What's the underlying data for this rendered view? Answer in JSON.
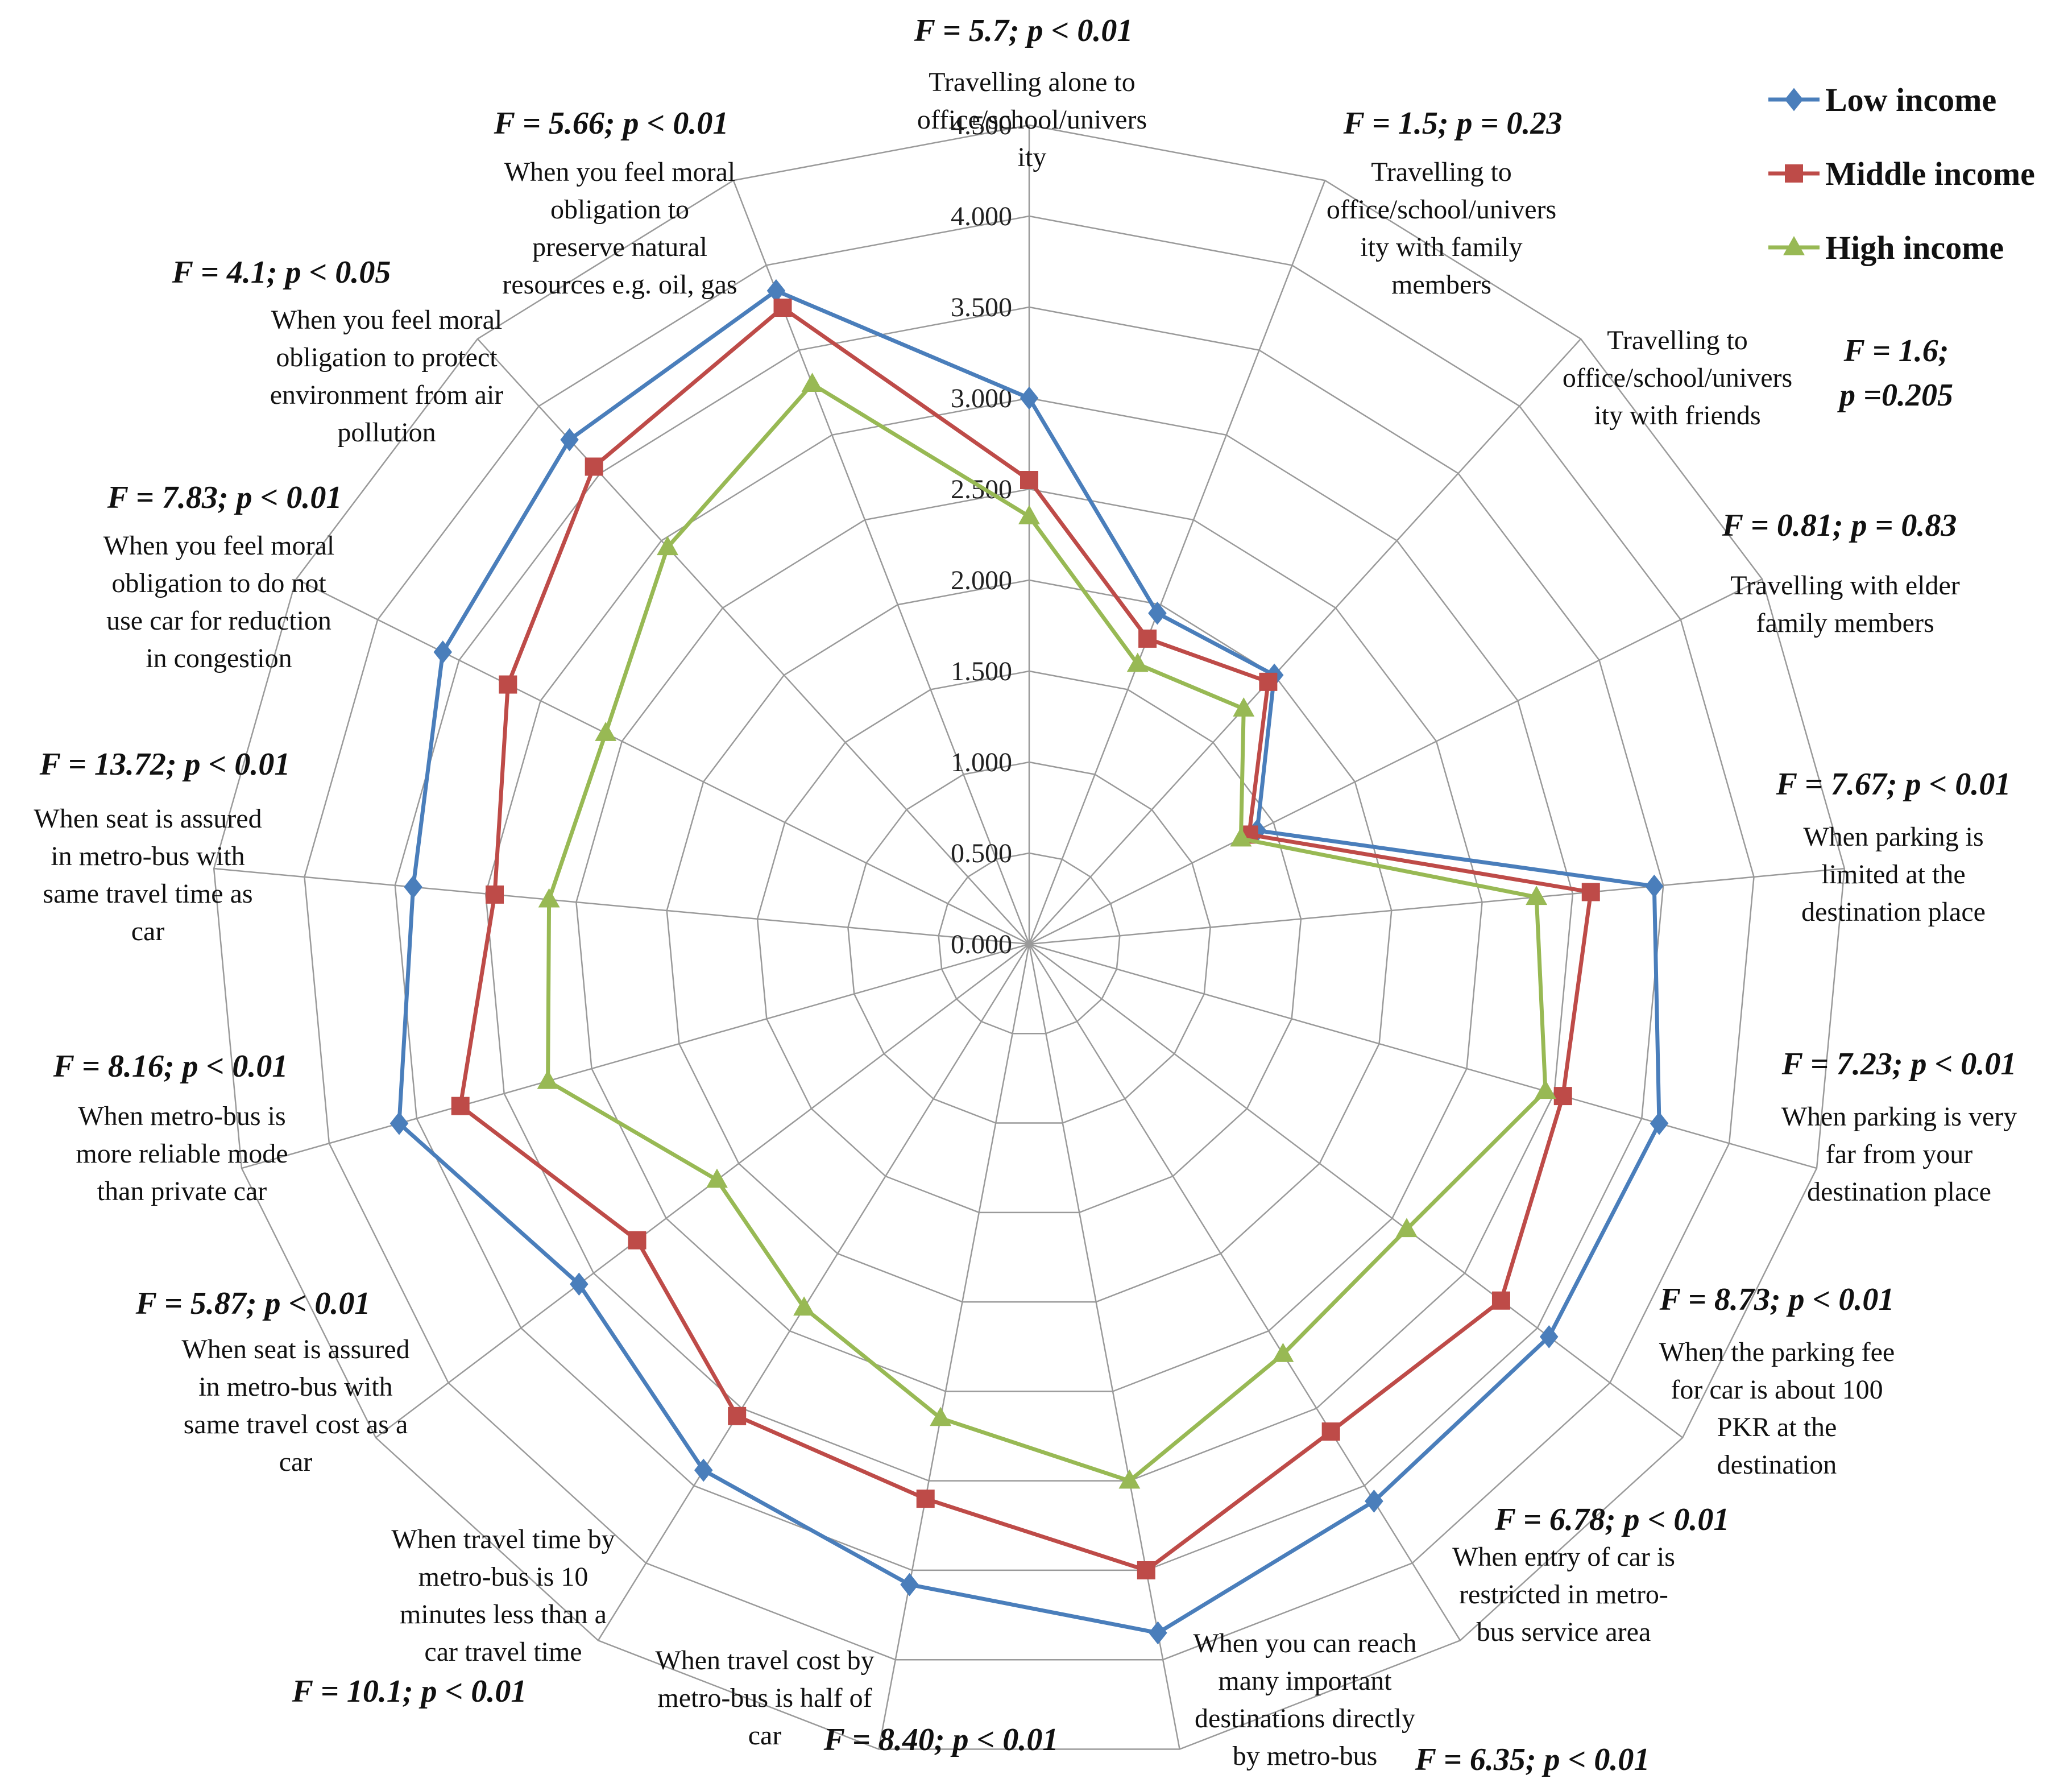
{
  "chart_data": {
    "type": "radar",
    "title": "",
    "rmin": 0,
    "rmax": 4.5,
    "ticks": [
      "0.000",
      "0.500",
      "1.000",
      "1.500",
      "2.000",
      "2.500",
      "3.000",
      "3.500",
      "4.000",
      "4.500"
    ],
    "categories": [
      {
        "name": "Travelling alone to office/school/university",
        "lines": [
          "Travelling  alone to",
          "office/school/univers",
          "ity"
        ],
        "stat": [
          "F = 5.7; p < 0.01"
        ]
      },
      {
        "name": "Travelling to office/school/university with family members",
        "lines": [
          "Travelling  to",
          "office/school/univers",
          "ity with family",
          "members"
        ],
        "stat": [
          "F = 1.5; p = 0.23"
        ]
      },
      {
        "name": "Travelling to office/school/university with friends",
        "lines": [
          "Travelling  to",
          "office/school/univers",
          "ity with friends"
        ],
        "stat": [
          "F = 1.6;",
          "p =0.205"
        ]
      },
      {
        "name": "Travelling with elder family members",
        "lines": [
          "Travelling  with elder",
          "family members"
        ],
        "stat": [
          "F = 0.81; p = 0.83"
        ]
      },
      {
        "name": "When parking is limited at the destination place",
        "lines": [
          "When parking is",
          "limited at the",
          "destination place"
        ],
        "stat": [
          "F = 7.67; p < 0.01"
        ]
      },
      {
        "name": "When parking is very far from your destination place",
        "lines": [
          "When parking is very",
          "far from your",
          "destination place"
        ],
        "stat": [
          "F = 7.23; p < 0.01"
        ]
      },
      {
        "name": "When the parking fee for car is about 100 PKR at the destination",
        "lines": [
          "When the parking fee",
          "for car is about 100",
          "PKR at the",
          "destination"
        ],
        "stat": [
          "F = 8.73; p < 0.01"
        ]
      },
      {
        "name": "When entry of car is restricted in metro-bus service area",
        "lines": [
          "When entry of car is",
          "restricted in metro-",
          "bus service  area"
        ],
        "stat": [
          "F = 6.78; p < 0.01"
        ]
      },
      {
        "name": "When you can reach many important destinations directly by metro-bus",
        "lines": [
          "When you can reach",
          "many important",
          "destinations directly",
          "by metro-bus"
        ],
        "stat": [
          "F = 6.35; p < 0.01"
        ]
      },
      {
        "name": "When travel cost by metro-bus is half of car",
        "lines": [
          "When travel  cost by",
          "metro-bus is half of",
          "car"
        ],
        "stat": [
          "F = 8.40; p < 0.01"
        ]
      },
      {
        "name": "When travel time by metro-bus is 10 minutes less than a car travel time",
        "lines": [
          "When travel time by",
          "metro-bus is 10",
          "minutes less than a",
          "car travel time"
        ],
        "stat": [
          "F = 10.1; p < 0.01"
        ]
      },
      {
        "name": "When seat is assured in metro-bus with same travel cost as a car",
        "lines": [
          "When seat is assured",
          "in metro-bus with",
          "same travel cost as a",
          "car"
        ],
        "stat": [
          "F = 5.87; p < 0.01"
        ]
      },
      {
        "name": "When metro-bus is more reliable mode than private car",
        "lines": [
          "When metro-bus is",
          "more reliable  mode",
          "than private car"
        ],
        "stat": [
          "F = 8.16; p < 0.01"
        ]
      },
      {
        "name": "When seat is assured in metro-bus with same travel time as car",
        "lines": [
          "When seat is assured",
          "in metro-bus with",
          "same travel time  as",
          "car"
        ],
        "stat": [
          "F = 13.72; p < 0.01"
        ]
      },
      {
        "name": "When you feel moral obligation to do not use car for reduction in congestion",
        "lines": [
          "When you feel moral",
          "obligation to do not",
          "use car for reduction",
          "in congestion"
        ],
        "stat": [
          "F = 7.83; p < 0.01"
        ]
      },
      {
        "name": "When you feel moral obligation to protect environment from air pollution",
        "lines": [
          "When you feel moral",
          "obligation to protect",
          "environment from air",
          "pollution"
        ],
        "stat": [
          "F = 4.1; p < 0.05"
        ]
      },
      {
        "name": "When you feel moral obligation to preserve natural resources e.g. oil, gas",
        "lines": [
          "When you feel moral",
          "obligation to",
          "preserve natural",
          "resources e.g. oil, gas"
        ],
        "stat": [
          "F = 5.66; p < 0.01"
        ]
      }
    ],
    "series": [
      {
        "name": "Low income",
        "color": "#4a7ebb",
        "marker": "diamond",
        "values": [
          3.0,
          1.95,
          2.0,
          1.4,
          3.45,
          3.6,
          3.58,
          3.6,
          3.85,
          3.58,
          3.4,
          3.1,
          3.6,
          3.4,
          3.6,
          3.75,
          3.85
        ]
      },
      {
        "name": "Middle income",
        "color": "#be4b48",
        "marker": "square",
        "values": [
          2.55,
          1.8,
          1.95,
          1.35,
          3.1,
          3.05,
          3.25,
          3.15,
          3.5,
          3.1,
          3.05,
          2.7,
          3.25,
          2.95,
          3.2,
          3.55,
          3.75
        ]
      },
      {
        "name": "High income",
        "color": "#98b954",
        "marker": "triangle",
        "values": [
          2.35,
          1.65,
          1.75,
          1.3,
          2.8,
          2.95,
          2.6,
          2.65,
          3.0,
          2.65,
          2.35,
          2.15,
          2.75,
          2.65,
          2.6,
          2.95,
          3.3
        ]
      }
    ]
  }
}
